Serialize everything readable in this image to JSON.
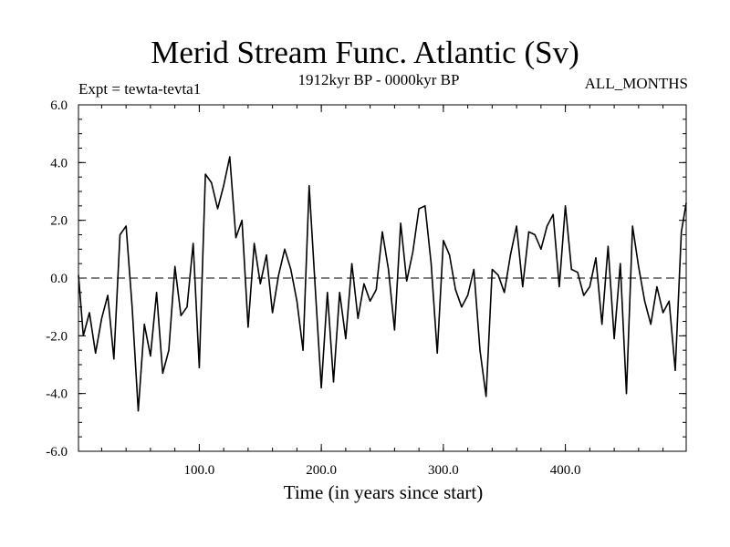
{
  "chart_data": {
    "type": "line",
    "title": "Merid Stream Func. Atlantic (Sv)",
    "subtitle": "1912kyr BP - 0000kyr BP",
    "left_label": "Expt = tewta-tevta1",
    "right_label": "ALL_MONTHS",
    "xlabel": "Time (in years since start)",
    "ylabel": "",
    "xlim": [
      1,
      499
    ],
    "ylim": [
      -6.0,
      6.0
    ],
    "x_ticks": [
      100.0,
      200.0,
      300.0,
      400.0
    ],
    "x_tick_labels": [
      "100.0",
      "200.0",
      "300.0",
      "400.0"
    ],
    "y_ticks": [
      -6.0,
      -4.0,
      -2.0,
      0.0,
      2.0,
      4.0,
      6.0
    ],
    "y_tick_labels": [
      "-6.0",
      "-4.0",
      "-2.0",
      "0.0",
      "2.0",
      "4.0",
      "6.0"
    ],
    "reference_line": {
      "y": 0.0,
      "style": "dashed"
    },
    "series": [
      {
        "name": "Merid Stream Func. Atlantic",
        "x": [
          1,
          5,
          10,
          15,
          20,
          25,
          30,
          35,
          40,
          45,
          50,
          55,
          60,
          65,
          70,
          75,
          80,
          85,
          90,
          95,
          100,
          105,
          110,
          115,
          120,
          125,
          130,
          135,
          140,
          145,
          150,
          155,
          160,
          165,
          170,
          175,
          180,
          185,
          190,
          195,
          200,
          205,
          210,
          215,
          220,
          225,
          230,
          235,
          240,
          245,
          250,
          255,
          260,
          265,
          270,
          275,
          280,
          285,
          290,
          295,
          300,
          305,
          310,
          315,
          320,
          325,
          330,
          335,
          340,
          345,
          350,
          355,
          360,
          365,
          370,
          375,
          380,
          385,
          390,
          395,
          400,
          405,
          410,
          415,
          420,
          425,
          430,
          435,
          440,
          445,
          450,
          455,
          460,
          465,
          470,
          475,
          480,
          485,
          490,
          495,
          499
        ],
        "y": [
          0.1,
          -2.0,
          -1.2,
          -2.6,
          -1.4,
          -0.6,
          -2.8,
          1.5,
          1.8,
          -1.0,
          -4.6,
          -1.6,
          -2.7,
          -0.5,
          -3.3,
          -2.5,
          0.4,
          -1.3,
          -1.0,
          1.2,
          -3.1,
          3.6,
          3.3,
          2.4,
          3.2,
          4.2,
          1.4,
          2.0,
          -1.7,
          1.2,
          -0.2,
          0.8,
          -1.2,
          0.1,
          1.0,
          0.3,
          -0.8,
          -2.5,
          3.2,
          -0.3,
          -3.8,
          -0.5,
          -3.6,
          -0.5,
          -2.1,
          0.5,
          -1.4,
          -0.2,
          -0.8,
          -0.4,
          1.6,
          0.3,
          -1.8,
          1.9,
          -0.1,
          0.9,
          2.4,
          2.5,
          0.5,
          -2.6,
          1.3,
          0.8,
          -0.4,
          -1.0,
          -0.6,
          0.3,
          -2.5,
          -4.1,
          0.3,
          0.1,
          -0.5,
          0.8,
          1.8,
          -0.3,
          1.6,
          1.5,
          1.0,
          1.8,
          2.2,
          -0.3,
          2.5,
          0.3,
          0.2,
          -0.6,
          -0.3,
          0.7,
          -1.6,
          1.1,
          -2.1,
          0.5,
          -4.0,
          1.8,
          0.4,
          -0.8,
          -1.6,
          -0.3,
          -1.2,
          -0.8,
          -3.2,
          1.6,
          2.6
        ]
      }
    ]
  }
}
